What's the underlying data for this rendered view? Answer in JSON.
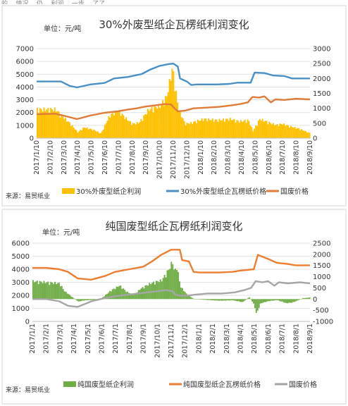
{
  "page": {
    "top_caption": "的... 情况... 仍... 利润... 一步... 了了"
  },
  "chart_data": [
    {
      "type": "line",
      "title": "30%外废型纸企瓦楞纸利润变化",
      "unit_label": "单位：元/吨",
      "source": "来源：易贸纸业",
      "yleft": {
        "ticks": [
          0,
          1000,
          2000,
          3000,
          4000,
          5000,
          6000,
          7000
        ],
        "lim": [
          0,
          7000
        ]
      },
      "yright": {
        "ticks": [
          0,
          500,
          1000,
          1500,
          2000,
          2500,
          3000
        ],
        "lim": [
          0,
          3000
        ]
      },
      "x_ticks": [
        "2017/1/10",
        "2017/2/10",
        "2017/3/10",
        "2017/4/10",
        "2017/5/10",
        "2017/6/10",
        "2017/7/10",
        "2017/8/10",
        "2017/9/10",
        "2017/10/10",
        "2017/11/10",
        "2017/12/10",
        "2018/1/10",
        "2018/2/10",
        "2018/3/10",
        "2018/4/10",
        "2018/5/10",
        "2018/6/10",
        "2018/7/10",
        "2018/8/10",
        "2018/9/10"
      ],
      "x_start": "2017-01-10",
      "x_end": "2018-09-10",
      "series": [
        {
          "name": "30%外废型纸企利润",
          "kind": "area",
          "axis": "left",
          "color": "#ffc000",
          "points": [
            [
              "2017-01-10",
              2400
            ],
            [
              "2017-02-20",
              2400
            ],
            [
              "2017-03-05",
              1900
            ],
            [
              "2017-03-25",
              1200
            ],
            [
              "2017-04-10",
              500
            ],
            [
              "2017-04-25",
              900
            ],
            [
              "2017-05-15",
              700
            ],
            [
              "2017-06-01",
              400
            ],
            [
              "2017-06-20",
              1900
            ],
            [
              "2017-07-10",
              2300
            ],
            [
              "2017-07-25",
              1700
            ],
            [
              "2017-08-10",
              1200
            ],
            [
              "2017-08-25",
              1300
            ],
            [
              "2017-09-15",
              2400
            ],
            [
              "2017-10-10",
              2700
            ],
            [
              "2017-10-25",
              3500
            ],
            [
              "2017-11-02",
              5000
            ],
            [
              "2017-11-07",
              5900
            ],
            [
              "2017-11-12",
              4500
            ],
            [
              "2017-11-20",
              2500
            ],
            [
              "2017-12-05",
              1200
            ],
            [
              "2017-12-20",
              1300
            ],
            [
              "2018-01-15",
              1600
            ],
            [
              "2018-02-15",
              1500
            ],
            [
              "2018-03-15",
              1600
            ],
            [
              "2018-04-05",
              1400
            ],
            [
              "2018-04-25",
              1500
            ],
            [
              "2018-05-05",
              600
            ],
            [
              "2018-05-20",
              1600
            ],
            [
              "2018-06-10",
              1300
            ],
            [
              "2018-06-25",
              1100
            ],
            [
              "2018-07-10",
              1200
            ],
            [
              "2018-07-25",
              1000
            ],
            [
              "2018-08-15",
              800
            ],
            [
              "2018-09-10",
              400
            ]
          ]
        },
        {
          "name": "30%外废型纸企瓦楞纸价格",
          "kind": "line",
          "axis": "right",
          "color": "#4a90c6",
          "points": [
            [
              "2017-01-10",
              1900
            ],
            [
              "2017-03-05",
              1900
            ],
            [
              "2017-03-25",
              1750
            ],
            [
              "2017-04-10",
              1700
            ],
            [
              "2017-05-10",
              1800
            ],
            [
              "2017-06-10",
              1850
            ],
            [
              "2017-07-01",
              2000
            ],
            [
              "2017-08-01",
              2050
            ],
            [
              "2017-09-01",
              2150
            ],
            [
              "2017-09-20",
              2300
            ],
            [
              "2017-10-10",
              2420
            ],
            [
              "2017-10-30",
              2480
            ],
            [
              "2017-11-10",
              2500
            ],
            [
              "2017-11-20",
              2400
            ],
            [
              "2017-11-25",
              2000
            ],
            [
              "2017-12-10",
              1900
            ],
            [
              "2017-12-20",
              1780
            ],
            [
              "2018-01-01",
              1800
            ],
            [
              "2018-02-15",
              1800
            ],
            [
              "2018-03-15",
              1820
            ],
            [
              "2018-04-01",
              1860
            ],
            [
              "2018-05-01",
              1860
            ],
            [
              "2018-05-10",
              2200
            ],
            [
              "2018-06-01",
              2180
            ],
            [
              "2018-06-20",
              2100
            ],
            [
              "2018-07-15",
              2080
            ],
            [
              "2018-08-01",
              2000
            ],
            [
              "2018-09-10",
              2000
            ]
          ]
        },
        {
          "name": "国废价格",
          "kind": "line",
          "axis": "right",
          "color": "#e07b39",
          "points": [
            [
              "2017-01-10",
              800
            ],
            [
              "2017-02-20",
              820
            ],
            [
              "2017-03-20",
              720
            ],
            [
              "2017-04-10",
              640
            ],
            [
              "2017-05-10",
              760
            ],
            [
              "2017-06-10",
              850
            ],
            [
              "2017-07-10",
              900
            ],
            [
              "2017-08-01",
              960
            ],
            [
              "2017-08-20",
              1000
            ],
            [
              "2017-09-10",
              1060
            ],
            [
              "2017-10-01",
              1100
            ],
            [
              "2017-10-20",
              1140
            ],
            [
              "2017-11-05",
              1130
            ],
            [
              "2017-11-10",
              1040
            ],
            [
              "2017-11-20",
              900
            ],
            [
              "2017-12-05",
              920
            ],
            [
              "2017-12-25",
              1000
            ],
            [
              "2018-01-20",
              1020
            ],
            [
              "2018-02-20",
              1050
            ],
            [
              "2018-03-20",
              1100
            ],
            [
              "2018-04-10",
              1150
            ],
            [
              "2018-04-25",
              1200
            ],
            [
              "2018-05-05",
              1380
            ],
            [
              "2018-05-20",
              1360
            ],
            [
              "2018-06-01",
              1400
            ],
            [
              "2018-06-15",
              1200
            ],
            [
              "2018-06-25",
              1300
            ],
            [
              "2018-07-15",
              1280
            ],
            [
              "2018-08-10",
              1320
            ],
            [
              "2018-09-10",
              1300
            ]
          ]
        }
      ],
      "legend": {
        "placement": "bottom"
      }
    },
    {
      "type": "line",
      "title": "纯国废型纸企瓦楞纸利润变化",
      "unit_label": "单位：元/吨",
      "source": "来源：易贸纸业",
      "yleft": {
        "ticks": [
          0,
          1000,
          2000,
          3000,
          4000,
          5000,
          6000
        ],
        "lim": [
          0,
          6000
        ]
      },
      "yright": {
        "ticks": [
          -1000,
          -500,
          0,
          500,
          1000,
          1500,
          2000,
          2500
        ],
        "lim": [
          -1000,
          2500
        ]
      },
      "x_ticks": [
        "2017/1/1",
        "2017/2/1",
        "2017/3/1",
        "2017/4/1",
        "2017/5/1",
        "2017/6/1",
        "2017/7/1",
        "2017/8/1",
        "2017/9/1",
        "2017/10/1",
        "2017/11/1",
        "2017/12/1",
        "2018/1/1",
        "2018/2/1",
        "2018/3/1",
        "2018/4/1",
        "2018/5/1",
        "2018/6/1",
        "2018/7/1",
        "2018/8/1",
        "2018/9/1"
      ],
      "x_start": "2017-01-01",
      "x_end": "2018-09-01",
      "series": [
        {
          "name": "纯国废型纸企利润",
          "kind": "area",
          "axis": "right",
          "color": "#70ad47",
          "points": [
            [
              "2017-01-01",
              850
            ],
            [
              "2017-02-01",
              800
            ],
            [
              "2017-03-01",
              750
            ],
            [
              "2017-03-10",
              400
            ],
            [
              "2017-03-25",
              150
            ],
            [
              "2017-04-10",
              -120
            ],
            [
              "2017-04-25",
              -60
            ],
            [
              "2017-05-15",
              -40
            ],
            [
              "2017-06-01",
              50
            ],
            [
              "2017-06-20",
              400
            ],
            [
              "2017-07-10",
              650
            ],
            [
              "2017-07-25",
              350
            ],
            [
              "2017-08-10",
              200
            ],
            [
              "2017-08-25",
              500
            ],
            [
              "2017-09-15",
              750
            ],
            [
              "2017-10-10",
              900
            ],
            [
              "2017-10-25",
              1400
            ],
            [
              "2017-11-03",
              1800
            ],
            [
              "2017-11-07",
              1250
            ],
            [
              "2017-11-12",
              1600
            ],
            [
              "2017-11-20",
              600
            ],
            [
              "2017-12-05",
              200
            ],
            [
              "2017-12-20",
              0
            ],
            [
              "2018-01-15",
              -40
            ],
            [
              "2018-02-15",
              -80
            ],
            [
              "2018-03-15",
              -60
            ],
            [
              "2018-04-05",
              -150
            ],
            [
              "2018-04-20",
              100
            ],
            [
              "2018-05-01",
              -300
            ],
            [
              "2018-05-05",
              -700
            ],
            [
              "2018-05-15",
              -200
            ],
            [
              "2018-06-01",
              -100
            ],
            [
              "2018-06-20",
              -50
            ],
            [
              "2018-07-10",
              -200
            ],
            [
              "2018-07-25",
              -160
            ],
            [
              "2018-08-15",
              40
            ],
            [
              "2018-09-01",
              80
            ]
          ]
        },
        {
          "name": "纯国废型纸企瓦楞纸价格",
          "kind": "line",
          "axis": "left",
          "color": "#ed7d31",
          "points": [
            [
              "2017-01-01",
              4100
            ],
            [
              "2017-02-01",
              4100
            ],
            [
              "2017-03-01",
              4000
            ],
            [
              "2017-03-20",
              3800
            ],
            [
              "2017-04-10",
              3300
            ],
            [
              "2017-05-10",
              3200
            ],
            [
              "2017-06-10",
              3500
            ],
            [
              "2017-07-01",
              3800
            ],
            [
              "2017-08-01",
              4000
            ],
            [
              "2017-09-01",
              4200
            ],
            [
              "2017-09-20",
              4600
            ],
            [
              "2017-10-10",
              5100
            ],
            [
              "2017-11-01",
              5500
            ],
            [
              "2017-11-20",
              5500
            ],
            [
              "2017-11-25",
              4700
            ],
            [
              "2017-12-10",
              4600
            ],
            [
              "2017-12-20",
              3800
            ],
            [
              "2018-01-01",
              3750
            ],
            [
              "2018-02-15",
              3750
            ],
            [
              "2018-03-15",
              3800
            ],
            [
              "2018-04-01",
              3900
            ],
            [
              "2018-05-01",
              4000
            ],
            [
              "2018-05-10",
              5100
            ],
            [
              "2018-06-01",
              4800
            ],
            [
              "2018-06-20",
              4500
            ],
            [
              "2018-07-15",
              4400
            ],
            [
              "2018-08-01",
              4300
            ],
            [
              "2018-09-01",
              4300
            ]
          ]
        },
        {
          "name": "国废价格",
          "kind": "line",
          "axis": "right",
          "color": "#a6a6a6",
          "points": [
            [
              "2017-01-01",
              0
            ],
            [
              "2017-02-01",
              0
            ],
            [
              "2017-03-01",
              -100
            ],
            [
              "2017-03-20",
              -300
            ],
            [
              "2017-04-10",
              -350
            ],
            [
              "2017-05-10",
              -100
            ],
            [
              "2017-06-10",
              50
            ],
            [
              "2017-07-10",
              150
            ],
            [
              "2017-08-01",
              200
            ],
            [
              "2017-08-20",
              250
            ],
            [
              "2017-09-10",
              300
            ],
            [
              "2017-10-01",
              350
            ],
            [
              "2017-10-20",
              400
            ],
            [
              "2017-11-05",
              350
            ],
            [
              "2017-11-10",
              200
            ],
            [
              "2017-11-20",
              150
            ],
            [
              "2017-12-05",
              150
            ],
            [
              "2017-12-25",
              200
            ],
            [
              "2018-01-20",
              250
            ],
            [
              "2018-02-20",
              250
            ],
            [
              "2018-03-20",
              300
            ],
            [
              "2018-04-10",
              400
            ],
            [
              "2018-04-25",
              500
            ],
            [
              "2018-05-05",
              800
            ],
            [
              "2018-05-20",
              750
            ],
            [
              "2018-06-01",
              800
            ],
            [
              "2018-06-15",
              600
            ],
            [
              "2018-06-25",
              750
            ],
            [
              "2018-07-15",
              700
            ],
            [
              "2018-08-10",
              750
            ],
            [
              "2018-09-01",
              700
            ]
          ]
        }
      ],
      "legend": {
        "placement": "bottom"
      }
    }
  ]
}
